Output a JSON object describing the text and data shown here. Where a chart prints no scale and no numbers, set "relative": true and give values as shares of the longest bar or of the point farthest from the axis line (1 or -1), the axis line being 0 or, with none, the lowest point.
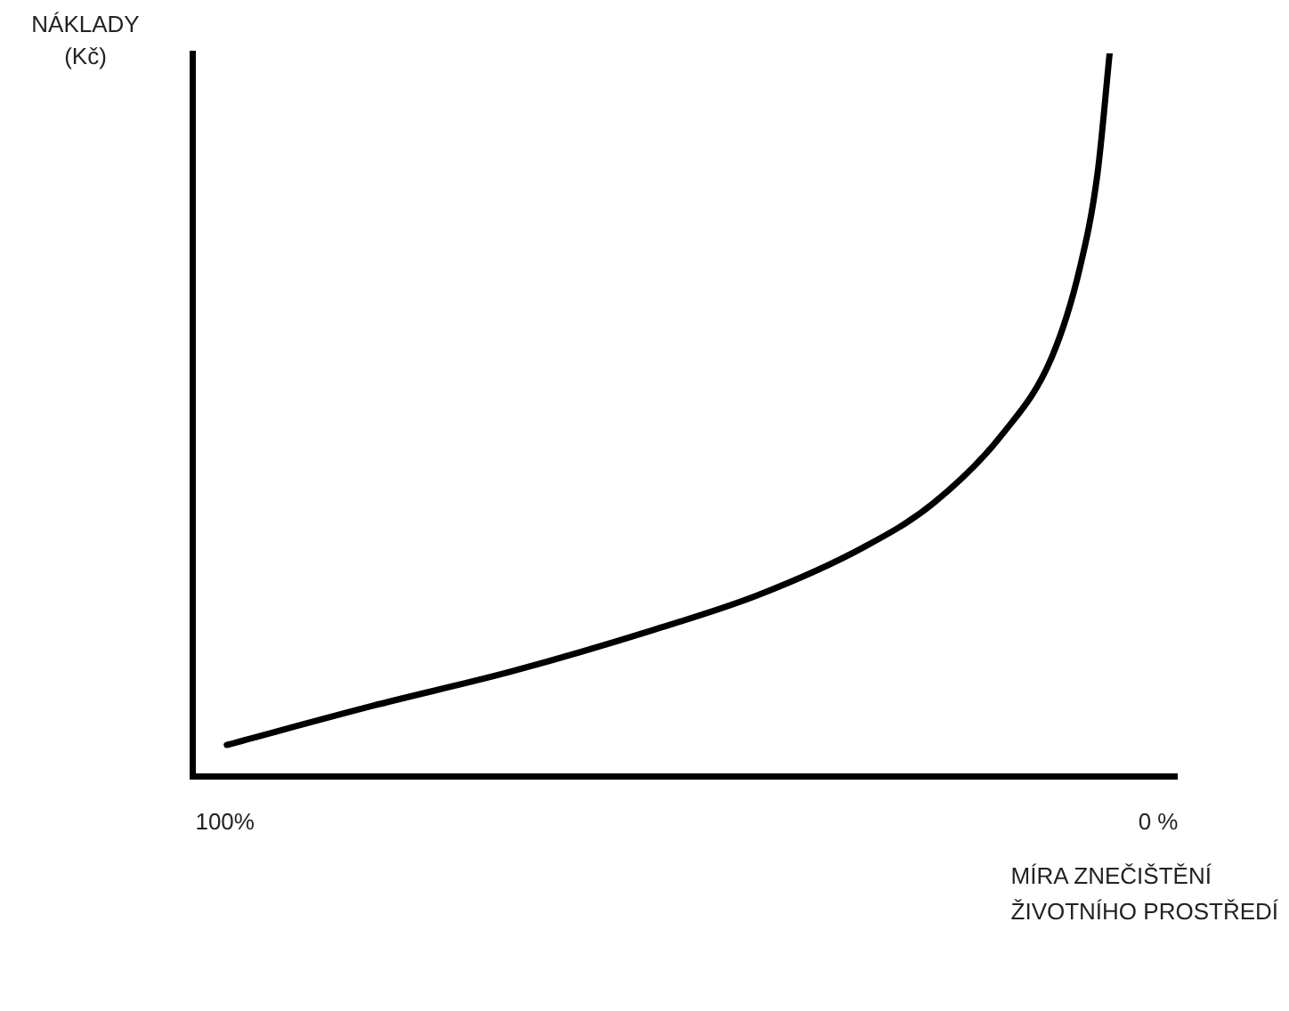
{
  "chart_data": {
    "type": "line",
    "ylabel": "NÁKLADY (Kč)",
    "xlabel": "MÍRA ZNEČIŠTĚNÍ ŽIVOTNÍHO PROSTŘEDÍ",
    "relative": true,
    "xlim": [
      103.5,
      -2
    ],
    "xticks": [
      {
        "value": 100,
        "label": "100%"
      },
      {
        "value": 0,
        "label": "0 %"
      }
    ],
    "grid": false,
    "legend": false,
    "marker": "none",
    "line_style": "solid",
    "series": [
      {
        "color": "#000000",
        "x": [
          99.8,
          84.2,
          69.2,
          54.1,
          42.9,
          31.6,
          24.1,
          16.6,
          11.4,
          8.4,
          6.5,
          5.2
        ],
        "values": [
          0.044,
          0.098,
          0.146,
          0.203,
          0.251,
          0.317,
          0.378,
          0.475,
          0.58,
          0.703,
          0.834,
          1
        ]
      }
    ]
  }
}
